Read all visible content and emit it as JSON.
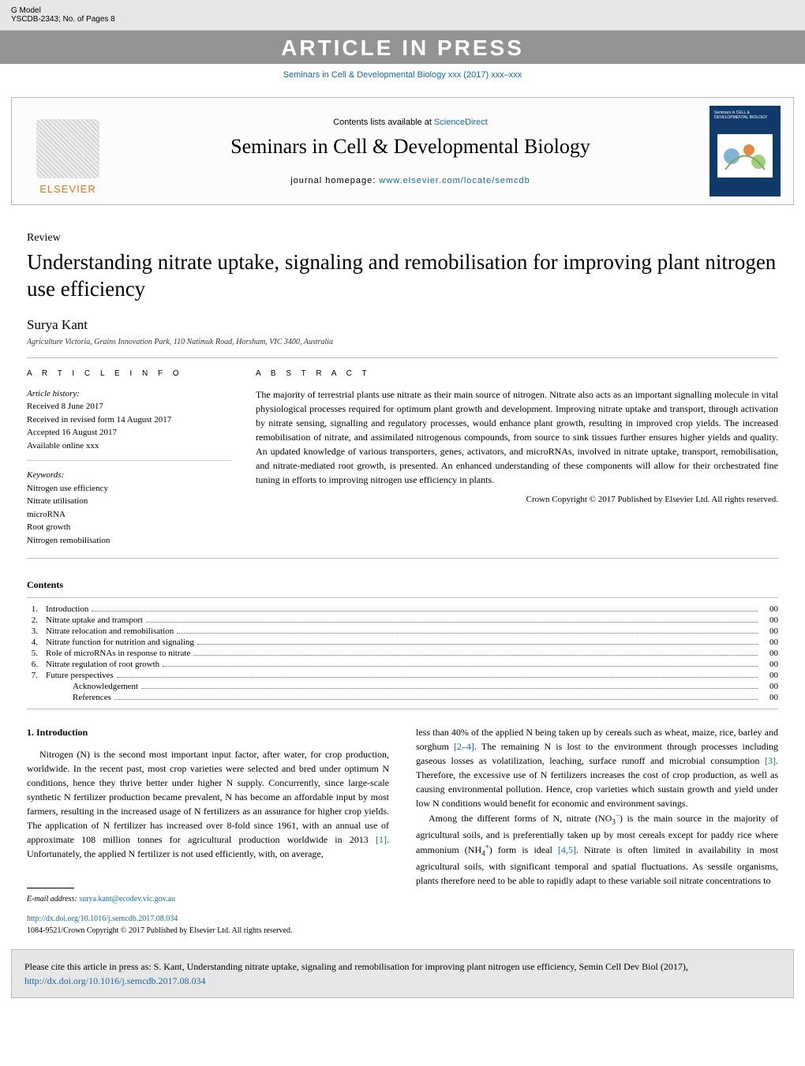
{
  "header": {
    "gmodel": "G Model",
    "docref": "YSCDB-2343;   No. of Pages 8",
    "banner": "ARTICLE IN PRESS",
    "citation_prefix": "Seminars in Cell & Developmental Biology xxx (2017) xxx–xxx"
  },
  "masthead": {
    "contents_lists": "Contents lists available at ",
    "sciencedirect": "ScienceDirect",
    "journal_title": "Seminars in Cell & Developmental Biology",
    "homepage_label": "journal homepage: ",
    "homepage_url": "www.elsevier.com/locate/semcdb",
    "publisher": "ELSEVIER",
    "cover_small_top": "Seminars in\nCELL & DEVELOPMENTAL\nBIOLOGY"
  },
  "article": {
    "type": "Review",
    "title": "Understanding nitrate uptake, signaling and remobilisation for improving plant nitrogen use efficiency",
    "author": "Surya Kant",
    "affiliation": "Agriculture Victoria, Grains Innovation Park, 110 Natimuk Road, Horsham, VIC 3400, Australia"
  },
  "info": {
    "heading": "A R T I C L E   I N F O",
    "history_label": "Article history:",
    "received": "Received 8 June 2017",
    "revised": "Received in revised form 14 August 2017",
    "accepted": "Accepted 16 August 2017",
    "online": "Available online xxx",
    "keywords_label": "Keywords:",
    "keywords": [
      "Nitrogen use efficiency",
      "Nitrate utilisation",
      "microRNA",
      "Root growth",
      "Nitrogen remobilisation"
    ]
  },
  "abstract": {
    "heading": "A B S T R A C T",
    "text": "The majority of terrestrial plants use nitrate as their main source of nitrogen. Nitrate also acts as an important signalling molecule in vital physiological processes required for optimum plant growth and development. Improving nitrate uptake and transport, through activation by nitrate sensing, signalling and regulatory processes, would enhance plant growth, resulting in improved crop yields. The increased remobilisation of nitrate, and assimilated nitrogenous compounds, from source to sink tissues further ensures higher yields and quality. An updated knowledge of various transporters, genes, activators, and microRNAs, involved in nitrate uptake, transport, remobilisation, and nitrate-mediated root growth, is presented. An enhanced understanding of these components will allow for their orchestrated fine tuning in efforts to improving nitrogen use efficiency in plants.",
    "copyright": "Crown Copyright © 2017 Published by Elsevier Ltd. All rights reserved."
  },
  "contents": {
    "heading": "Contents",
    "items": [
      {
        "num": "1.",
        "label": "Introduction",
        "page": "00"
      },
      {
        "num": "2.",
        "label": "Nitrate uptake and transport",
        "page": "00"
      },
      {
        "num": "3.",
        "label": "Nitrate relocation and remobilisation",
        "page": "00"
      },
      {
        "num": "4.",
        "label": "Nitrate function for nutrition and signaling",
        "page": "00"
      },
      {
        "num": "5.",
        "label": "Role of microRNAs in response to nitrate",
        "page": "00"
      },
      {
        "num": "6.",
        "label": "Nitrate regulation of root growth",
        "page": "00"
      },
      {
        "num": "7.",
        "label": "Future perspectives",
        "page": "00"
      },
      {
        "num": "",
        "label": "Acknowledgement",
        "page": "00",
        "indent": true
      },
      {
        "num": "",
        "label": "References",
        "page": "00",
        "indent": true
      }
    ]
  },
  "intro": {
    "heading": "1. Introduction",
    "left_p1a": "Nitrogen (N) is the second most important input factor, after water, for crop production, worldwide. In the recent past, most crop varieties were selected and bred under optimum N conditions, hence they thrive better under higher N supply. Concurrently, since large-scale synthetic N fertilizer production became prevalent, N has become an affordable input by most farmers, resulting in the increased usage of N fertilizers as an assurance for higher crop yields. The application of N fertilizer has increased over 8-fold since 1961, with an annual use of approximate 108 million tonnes for agricultural production worldwide in 2013 ",
    "ref1": "[1]",
    "left_p1b": ". Unfortunately, the applied N fertilizer is not used efficiently, with, on average,",
    "right_p1a": "less than 40% of the applied N being taken up by cereals such as wheat, maize, rice, barley and sorghum ",
    "ref24": "[2–4]",
    "right_p1b": ". The remaining N is lost to the environment through processes including gaseous losses as volatilization, leaching, surface runoff and microbial consumption ",
    "ref3": "[3]",
    "right_p1c": ". Therefore, the excessive use of N fertilizers increases the cost of crop production, as well as causing environmental pollution. Hence, crop varieties which sustain growth and yield under low N conditions would benefit for economic and environment savings.",
    "right_p2a": "Among the different forms of N, nitrate (NO",
    "right_p2b": ") is the main source in the majority of agricultural soils, and is preferentially taken up by most cereals except for paddy rice where ammonium (NH",
    "right_p2c": ") form is ideal ",
    "ref45": "[4,5]",
    "right_p2d": ". Nitrate is often limited in availability in most agricultural soils, with significant temporal and spatial fluctuations. As sessile organisms, plants therefore need to be able to rapidly adapt to these variable soil nitrate concentrations to"
  },
  "footer": {
    "email_label": "E-mail address: ",
    "email": "surya.kant@ecodev.vic.gov.au",
    "doi": "http://dx.doi.org/10.1016/j.semcdb.2017.08.034",
    "issn_line": "1084-9521/Crown Copyright © 2017 Published by Elsevier Ltd. All rights reserved.",
    "citebox_a": "Please cite this article in press as: S. Kant, Understanding nitrate uptake, signaling and remobilisation for improving plant nitrogen use efficiency, Semin Cell Dev Biol (2017), ",
    "citebox_link": "http://dx.doi.org/10.1016/j.semcdb.2017.08.034"
  },
  "colors": {
    "link": "#1068b3",
    "banner_bg": "#939393",
    "grey_bg": "#e7e7e7",
    "cover_bg": "#103a6a",
    "elsevier_orange": "#e67817"
  }
}
